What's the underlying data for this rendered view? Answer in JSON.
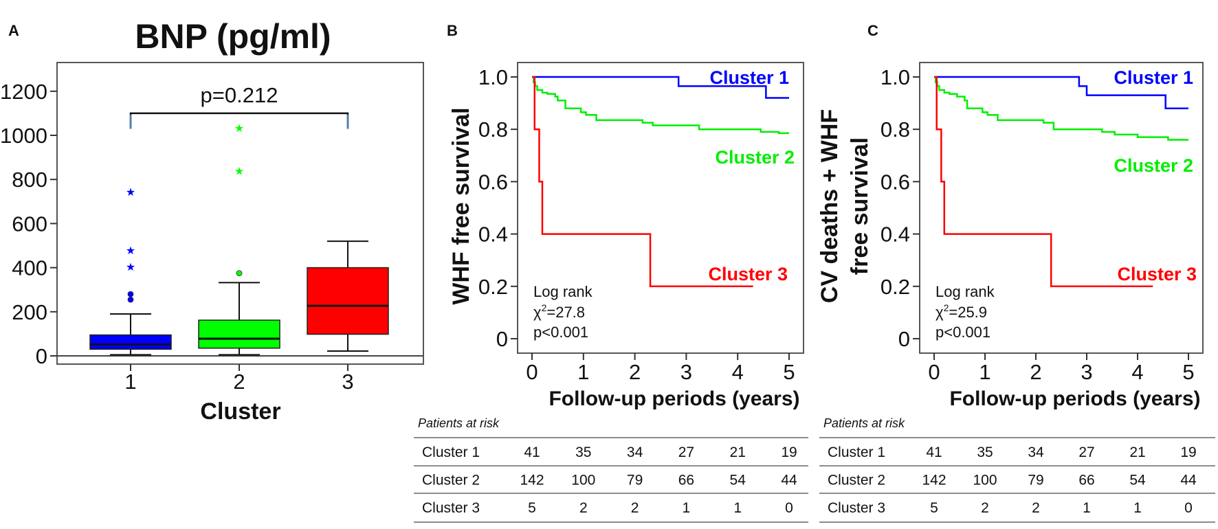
{
  "panels": {
    "a": "A",
    "b": "B",
    "c": "C"
  },
  "chart_data": [
    {
      "type": "box",
      "title": "BNP (pg/ml)",
      "xlabel": "Cluster",
      "ylabel": "",
      "ylim": [
        0,
        1300
      ],
      "yticks": [
        "0",
        "200",
        "400",
        "600",
        "800",
        "1000",
        "1200"
      ],
      "yticks_values": [
        0,
        200,
        400,
        600,
        800,
        1000,
        1200
      ],
      "categories": [
        "1",
        "2",
        "3"
      ],
      "boxes": [
        {
          "name": "1",
          "color": "#0000ff",
          "whisker_low": 5,
          "q1": 30,
          "median": 52,
          "q3": 95,
          "whisker_high": 190,
          "outliers_circle": [
            255,
            280
          ],
          "outliers_star": [
            405,
            480,
            745
          ]
        },
        {
          "name": "2",
          "color": "#00ff00",
          "whisker_low": 5,
          "q1": 35,
          "median": 78,
          "q3": 162,
          "whisker_high": 332,
          "outliers_circle": [
            375
          ],
          "outliers_star": [
            840,
            1035
          ]
        },
        {
          "name": "3",
          "color": "#ff0000",
          "whisker_low": 22,
          "q1": 98,
          "median": 227,
          "q3": 400,
          "whisker_high": 520,
          "outliers_circle": [],
          "outliers_star": []
        }
      ],
      "annotation": {
        "text": "p=0.212",
        "from": "1",
        "to": "3",
        "level": 1100
      }
    },
    {
      "type": "line",
      "subtype": "kaplan-meier",
      "ylabel_lines": [
        "WHF free survival"
      ],
      "xlabel": "Follow-up periods (years)",
      "xlim": [
        0,
        5
      ],
      "ylim": [
        0,
        1.0
      ],
      "xticks": [
        "0",
        "1",
        "2",
        "3",
        "4",
        "5"
      ],
      "yticks": [
        "0",
        "0.2",
        "0.4",
        "0.6",
        "0.8",
        "1.0"
      ],
      "stats": {
        "line1": "Log rank",
        "chi_label": "χ",
        "chi_sup": "2",
        "chi_value": "=27.8",
        "p": "p<0.001"
      },
      "series": [
        {
          "name": "Cluster 1",
          "color": "#0000ff",
          "steps": [
            [
              0,
              1.0
            ],
            [
              2.85,
              0.965
            ],
            [
              4.55,
              0.92
            ]
          ],
          "end": 5
        },
        {
          "name": "Cluster 2",
          "color": "#00ee00",
          "steps": [
            [
              0,
              1.0
            ],
            [
              0.03,
              0.98
            ],
            [
              0.06,
              0.965
            ],
            [
              0.1,
              0.95
            ],
            [
              0.2,
              0.94
            ],
            [
              0.3,
              0.935
            ],
            [
              0.45,
              0.925
            ],
            [
              0.5,
              0.91
            ],
            [
              0.65,
              0.88
            ],
            [
              0.95,
              0.865
            ],
            [
              1.05,
              0.855
            ],
            [
              1.25,
              0.835
            ],
            [
              2.15,
              0.825
            ],
            [
              2.35,
              0.815
            ],
            [
              3.25,
              0.8
            ],
            [
              4.45,
              0.79
            ],
            [
              4.8,
              0.785
            ]
          ],
          "end": 5
        },
        {
          "name": "Cluster 3",
          "color": "#ff0000",
          "steps": [
            [
              0,
              1.0
            ],
            [
              0.05,
              0.8
            ],
            [
              0.14,
              0.6
            ],
            [
              0.2,
              0.4
            ],
            [
              2.3,
              0.2
            ]
          ],
          "end": 4.3
        }
      ],
      "risk_table": {
        "title": "Patients at risk",
        "rows": [
          {
            "label": "Cluster 1",
            "values": [
              "41",
              "35",
              "34",
              "27",
              "21",
              "19"
            ]
          },
          {
            "label": "Cluster 2",
            "values": [
              "142",
              "100",
              "79",
              "66",
              "54",
              "44"
            ]
          },
          {
            "label": "Cluster 3",
            "values": [
              "5",
              "2",
              "2",
              "1",
              "1",
              "0"
            ]
          }
        ]
      }
    },
    {
      "type": "line",
      "subtype": "kaplan-meier",
      "ylabel_lines": [
        "CV deaths + WHF",
        "free survival"
      ],
      "xlabel": "Follow-up periods (years)",
      "xlim": [
        0,
        5
      ],
      "ylim": [
        0,
        1.0
      ],
      "xticks": [
        "0",
        "1",
        "2",
        "3",
        "4",
        "5"
      ],
      "yticks": [
        "0",
        "0.2",
        "0.4",
        "0.6",
        "0.8",
        "1.0"
      ],
      "stats": {
        "line1": "Log rank",
        "chi_label": "χ",
        "chi_sup": "2",
        "chi_value": "=25.9",
        "p": "p<0.001"
      },
      "series": [
        {
          "name": "Cluster 1",
          "color": "#0000ff",
          "steps": [
            [
              0,
              1.0
            ],
            [
              2.85,
              0.965
            ],
            [
              3.0,
              0.93
            ],
            [
              4.55,
              0.88
            ]
          ],
          "end": 5
        },
        {
          "name": "Cluster 2",
          "color": "#00ee00",
          "steps": [
            [
              0,
              1.0
            ],
            [
              0.03,
              0.98
            ],
            [
              0.06,
              0.965
            ],
            [
              0.1,
              0.95
            ],
            [
              0.2,
              0.94
            ],
            [
              0.3,
              0.935
            ],
            [
              0.45,
              0.925
            ],
            [
              0.6,
              0.91
            ],
            [
              0.65,
              0.88
            ],
            [
              0.95,
              0.865
            ],
            [
              1.05,
              0.855
            ],
            [
              1.25,
              0.835
            ],
            [
              2.15,
              0.825
            ],
            [
              2.35,
              0.8
            ],
            [
              3.3,
              0.79
            ],
            [
              3.55,
              0.78
            ],
            [
              4.0,
              0.77
            ],
            [
              4.6,
              0.76
            ]
          ],
          "end": 5
        },
        {
          "name": "Cluster 3",
          "color": "#ff0000",
          "steps": [
            [
              0,
              1.0
            ],
            [
              0.05,
              0.8
            ],
            [
              0.14,
              0.6
            ],
            [
              0.2,
              0.4
            ],
            [
              2.3,
              0.2
            ]
          ],
          "end": 4.3
        }
      ],
      "risk_table": {
        "title": "Patients at risk",
        "rows": [
          {
            "label": "Cluster 1",
            "values": [
              "41",
              "35",
              "34",
              "27",
              "21",
              "19"
            ]
          },
          {
            "label": "Cluster 2",
            "values": [
              "142",
              "100",
              "79",
              "66",
              "54",
              "44"
            ]
          },
          {
            "label": "Cluster 3",
            "values": [
              "5",
              "2",
              "2",
              "1",
              "1",
              "0"
            ]
          }
        ]
      }
    }
  ]
}
